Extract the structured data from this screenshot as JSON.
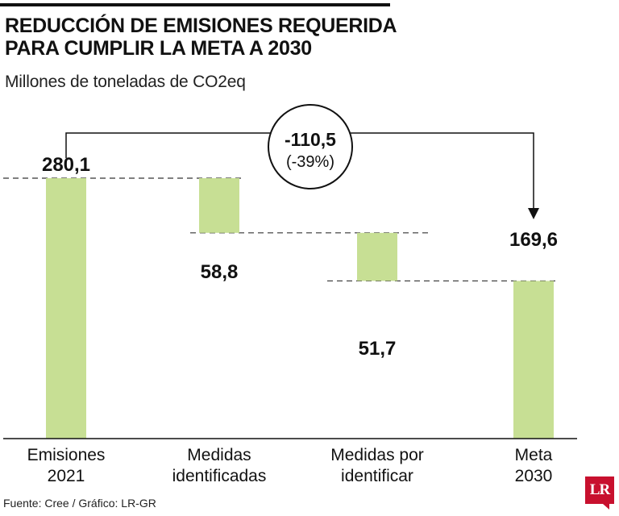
{
  "header": {
    "title_line1": "REDUCCIÓN DE EMISIONES REQUERIDA",
    "title_line2": "PARA CUMPLIR LA META A 2030",
    "subtitle": "Millones de toneladas de CO2eq"
  },
  "footer": {
    "source": "Fuente: Cree / Gráfico: LR-GR"
  },
  "logo": {
    "text": "LR"
  },
  "colors": {
    "bar": "#c7df94",
    "text": "#111111"
  },
  "chart_data": {
    "type": "bar",
    "subtype": "waterfall",
    "title": "REDUCCIÓN DE EMISIONES REQUERIDA PARA CUMPLIR LA META A 2030",
    "ylabel": "Millones de toneladas de CO2eq",
    "ylim": [
      0,
      280.1
    ],
    "categories": [
      [
        "Emisiones",
        "2021"
      ],
      [
        "Medidas",
        "identificadas"
      ],
      [
        "Medidas por",
        "identificar"
      ],
      [
        "Meta",
        "2030"
      ]
    ],
    "bars": [
      {
        "label": "280,1",
        "start": 0,
        "end": 280.1
      },
      {
        "label": "58,8",
        "start": 221.3,
        "end": 280.1
      },
      {
        "label": "51,7",
        "start": 169.6,
        "end": 221.3
      },
      {
        "label": "169,6",
        "start": 0,
        "end": 169.6
      }
    ],
    "annotation": {
      "value": "-110,5",
      "percent": "(-39%)"
    }
  }
}
